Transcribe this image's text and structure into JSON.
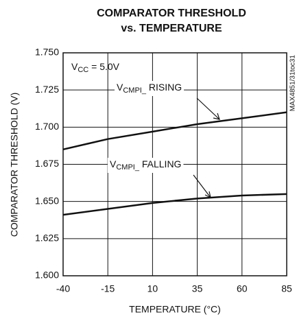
{
  "chart_data": {
    "type": "line",
    "title": [
      "COMPARATOR THRESHOLD",
      "vs. TEMPERATURE"
    ],
    "x_label": "TEMPERATURE (°C)",
    "y_label": "COMPARATOR THRESHOLD (V)",
    "code": "MAX4851/31toc31",
    "x": [
      -40,
      -15,
      10,
      35,
      60,
      85
    ],
    "series": [
      {
        "color": "#111111",
        "values": [
          1.685,
          1.692,
          1.697,
          1.702,
          1.706,
          1.71
        ]
      },
      {
        "color": "#111111",
        "values": [
          1.641,
          1.645,
          1.649,
          1.652,
          1.654,
          1.655
        ]
      }
    ],
    "annotations": [
      {
        "main": "V",
        "sub": "CC",
        "rest": " = 5.0V"
      },
      {
        "main": "V",
        "sub": "CMPI_",
        "rest": " RISING"
      },
      {
        "main": "V",
        "sub": "CMPI_",
        "rest": " FALLING"
      }
    ],
    "xlim": [
      -40,
      85
    ],
    "xticks": [
      -40,
      -15,
      10,
      35,
      60,
      85
    ],
    "ylim": [
      1.6,
      1.75
    ],
    "yticks": [
      {
        "value": 1.6,
        "label": "1.600"
      },
      {
        "value": 1.625,
        "label": "1.625"
      },
      {
        "value": 1.65,
        "label": "1.650"
      },
      {
        "value": 1.675,
        "label": "1.675"
      },
      {
        "value": 1.7,
        "label": "1.700"
      },
      {
        "value": 1.725,
        "label": "1.725"
      },
      {
        "value": 1.75,
        "label": "1.750"
      }
    ],
    "grid": true
  }
}
